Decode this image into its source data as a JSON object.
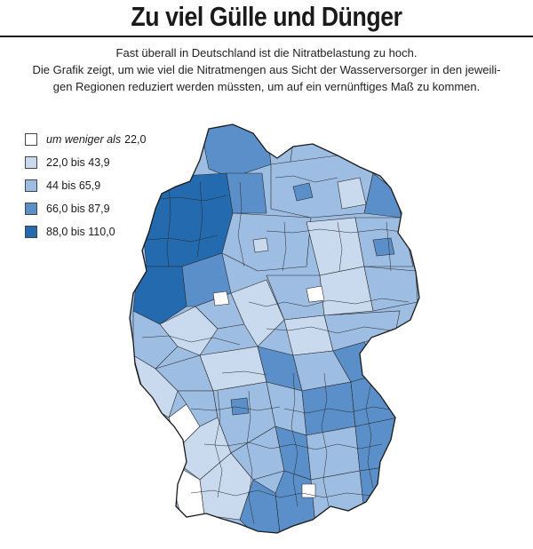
{
  "title": "Zu viel Gülle und Dünger",
  "subtitle": {
    "line1": "Fast überall in Deutschland ist die Nitratbelastung zu hoch.",
    "line2": "Die Grafik zeigt, um wie viel die Nitratmengen aus Sicht der Wasserversorger in den jeweili-",
    "line3": "gen Regionen reduziert werden müssten, um  auf ein vernünftiges Maß zu kommen."
  },
  "legend": [
    {
      "prefix": "um weniger als",
      "label": "22,0",
      "color": "#ffffff"
    },
    {
      "prefix": "",
      "label": "22,0 bis 43,9",
      "color": "#c9daee"
    },
    {
      "prefix": "",
      "label": "44 bis 65,9",
      "color": "#9dbde2"
    },
    {
      "prefix": "",
      "label": "66,0 bis 87,9",
      "color": "#5a8fca"
    },
    {
      "prefix": "",
      "label": "88,0 bis 110,0",
      "color": "#236aae"
    }
  ],
  "map": {
    "country": "Deutschland",
    "border_color": "#2a2a2a"
  }
}
